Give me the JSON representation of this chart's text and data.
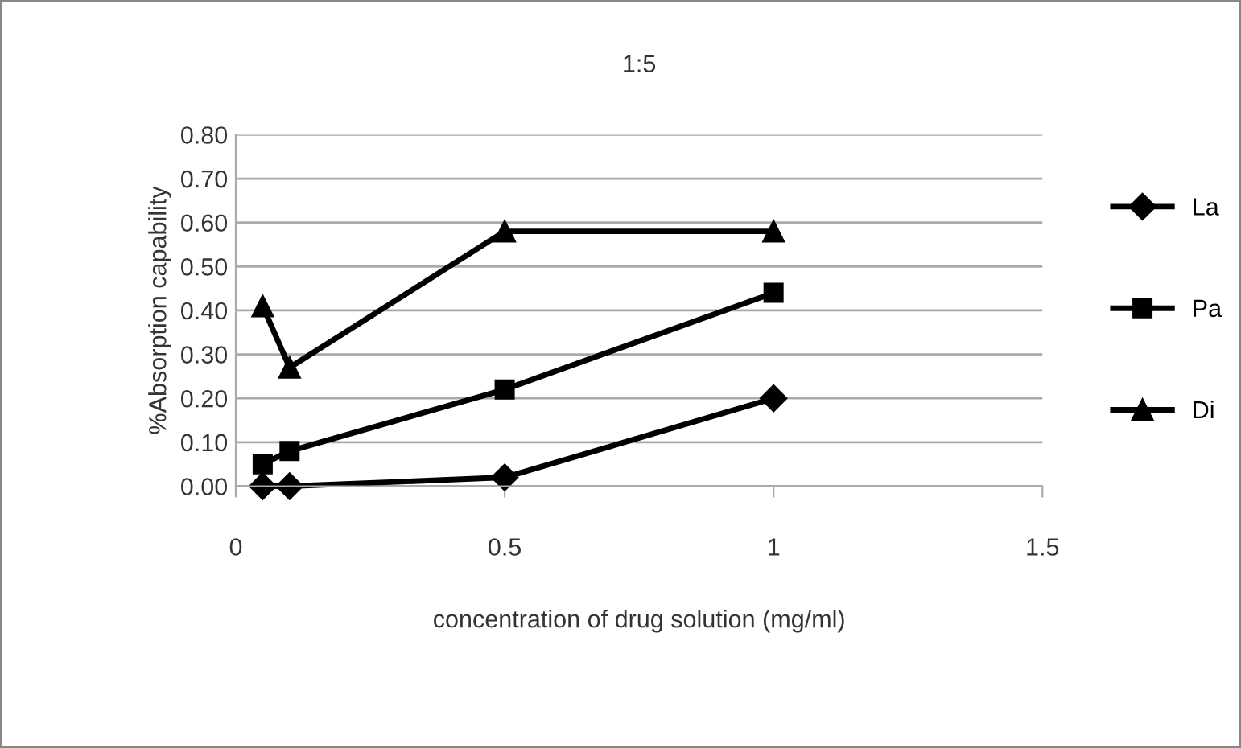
{
  "chart_data": {
    "type": "line",
    "title": "1:5",
    "xlabel": "concentration of drug solution (mg/ml)",
    "ylabel": "%Absorption capability",
    "x": [
      0.05,
      0.1,
      0.5,
      1
    ],
    "series": [
      {
        "name": "La",
        "color": "#000000",
        "marker": "diamond",
        "values": [
          0.0,
          0.0,
          0.02,
          0.2
        ]
      },
      {
        "name": "Pa",
        "color": "#000000",
        "marker": "square",
        "values": [
          0.05,
          0.08,
          0.22,
          0.44
        ]
      },
      {
        "name": "Di",
        "color": "#000000",
        "marker": "triangle",
        "values": [
          0.41,
          0.27,
          0.58,
          0.58
        ]
      }
    ],
    "xlim": [
      0,
      1.5
    ],
    "xticks": [
      0,
      0.5,
      1,
      1.5
    ],
    "ylim": [
      0,
      0.8
    ],
    "yticks": [
      {
        "value": 0,
        "label": "0.00"
      },
      {
        "value": 0.1,
        "label": "0.10"
      },
      {
        "value": 0.2,
        "label": "0.20"
      },
      {
        "value": 0.3,
        "label": "0.30"
      },
      {
        "value": 0.4,
        "label": "0.40"
      },
      {
        "value": 0.5,
        "label": "0.50"
      },
      {
        "value": 0.6,
        "label": "0.60"
      },
      {
        "value": 0.7,
        "label": "0.70"
      },
      {
        "value": 0.8,
        "label": "0.80"
      }
    ],
    "grid": "y",
    "legend": "right",
    "line_style": "solid"
  }
}
